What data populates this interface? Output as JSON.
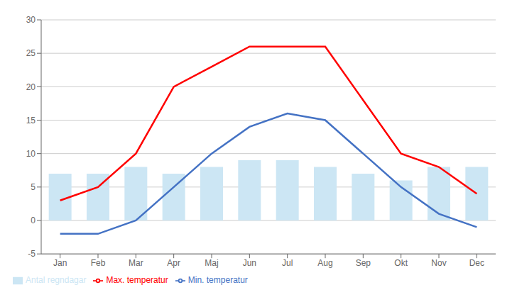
{
  "chart_data": {
    "type": "bar",
    "categories": [
      "Jan",
      "Feb",
      "Mar",
      "Apr",
      "Maj",
      "Jun",
      "Jul",
      "Aug",
      "Sep",
      "Okt",
      "Nov",
      "Dec"
    ],
    "series": [
      {
        "name": "Antal regndagar",
        "type": "bar",
        "color": "#cce6f4",
        "values": [
          7,
          7,
          8,
          7,
          8,
          9,
          9,
          8,
          7,
          6,
          8,
          8
        ]
      },
      {
        "name": "Min. temperatur",
        "type": "line",
        "color": "#4472c4",
        "values": [
          -2,
          -2,
          0,
          5,
          10,
          14,
          16,
          15,
          10,
          5,
          1,
          -1
        ]
      },
      {
        "name": "Max. temperatur",
        "type": "line",
        "color": "#ff0000",
        "values": [
          3,
          5,
          10,
          20,
          23,
          26,
          26,
          26,
          18,
          10,
          8,
          4
        ]
      }
    ],
    "ylim": [
      -5,
      30
    ],
    "yticks": [
      -5,
      0,
      5,
      10,
      15,
      20,
      25,
      30
    ],
    "grid": true,
    "legend": "lower left"
  }
}
